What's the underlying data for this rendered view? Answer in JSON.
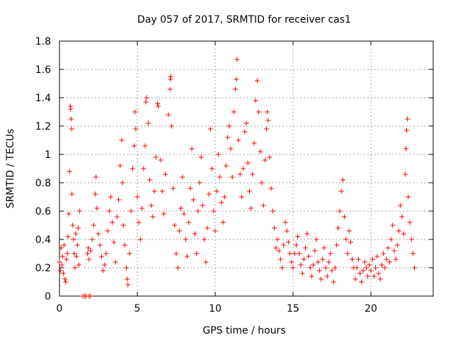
{
  "chart_data": {
    "type": "scatter",
    "title": "Day 057 of 2017, SRMTID for receiver cas1",
    "xlabel": "GPS time / hours",
    "ylabel": "SRMTID / TECUs",
    "xlim": [
      0,
      24
    ],
    "ylim": [
      0,
      1.8
    ],
    "xticks": [
      0,
      5,
      10,
      15,
      20
    ],
    "xtick_labels": [
      "0",
      "5",
      "10",
      "15",
      "20"
    ],
    "yticks": [
      0,
      0.2,
      0.4,
      0.6,
      0.8,
      1.0,
      1.2,
      1.4,
      1.6,
      1.8
    ],
    "ytick_labels": [
      "0",
      "0.2",
      "0.4",
      "0.6",
      "0.8",
      "1",
      "1.2",
      "1.4",
      "1.6",
      "1.8"
    ],
    "grid": true,
    "marker": "+",
    "marker_color": "#ff0000",
    "series": [
      {
        "name": "SRMTID cas1",
        "points": [
          [
            0.0,
            0.24
          ],
          [
            0.05,
            0.18
          ],
          [
            0.1,
            0.34
          ],
          [
            0.15,
            0.22
          ],
          [
            0.2,
            0.28
          ],
          [
            0.25,
            0.16
          ],
          [
            0.3,
            0.36
          ],
          [
            0.35,
            0.12
          ],
          [
            0.4,
            0.1
          ],
          [
            0.45,
            0.26
          ],
          [
            0.5,
            0.3
          ],
          [
            0.55,
            0.42
          ],
          [
            0.6,
            0.58
          ],
          [
            0.65,
            0.88
          ],
          [
            0.7,
            1.34
          ],
          [
            0.72,
            1.32
          ],
          [
            0.75,
            1.25
          ],
          [
            0.78,
            1.18
          ],
          [
            0.8,
            0.72
          ],
          [
            0.85,
            0.5
          ],
          [
            0.9,
            0.4
          ],
          [
            0.95,
            0.3
          ],
          [
            1.0,
            0.2
          ],
          [
            1.05,
            0.44
          ],
          [
            1.1,
            0.28
          ],
          [
            1.15,
            0.36
          ],
          [
            1.2,
            0.48
          ],
          [
            1.25,
            0.22
          ],
          [
            1.3,
            0.6
          ],
          [
            1.5,
            0.0
          ],
          [
            1.6,
            0.0
          ],
          [
            1.7,
            0.0
          ],
          [
            1.9,
            0.0
          ],
          [
            2.0,
            0.0
          ],
          [
            1.8,
            0.3
          ],
          [
            1.85,
            0.34
          ],
          [
            1.9,
            0.26
          ],
          [
            2.0,
            0.32
          ],
          [
            2.1,
            0.4
          ],
          [
            2.2,
            0.5
          ],
          [
            2.3,
            0.72
          ],
          [
            2.35,
            0.84
          ],
          [
            2.4,
            0.62
          ],
          [
            2.5,
            0.44
          ],
          [
            2.6,
            0.36
          ],
          [
            2.7,
            0.28
          ],
          [
            2.8,
            0.18
          ],
          [
            2.9,
            0.22
          ],
          [
            3.0,
            0.3
          ],
          [
            3.1,
            0.46
          ],
          [
            3.2,
            0.6
          ],
          [
            3.3,
            0.7
          ],
          [
            3.4,
            0.52
          ],
          [
            3.5,
            0.38
          ],
          [
            3.6,
            0.24
          ],
          [
            3.7,
            0.56
          ],
          [
            3.8,
            0.68
          ],
          [
            3.9,
            0.92
          ],
          [
            4.0,
            1.1
          ],
          [
            4.05,
            0.8
          ],
          [
            4.1,
            0.5
          ],
          [
            4.2,
            0.36
          ],
          [
            4.3,
            0.2
          ],
          [
            4.35,
            0.12
          ],
          [
            4.4,
            0.08
          ],
          [
            4.5,
            0.3
          ],
          [
            4.6,
            0.6
          ],
          [
            4.7,
            0.9
          ],
          [
            4.8,
            1.06
          ],
          [
            4.85,
            1.3
          ],
          [
            4.9,
            1.18
          ],
          [
            5.0,
            0.7
          ],
          [
            5.1,
            0.52
          ],
          [
            5.2,
            0.4
          ],
          [
            5.3,
            0.62
          ],
          [
            5.4,
            0.9
          ],
          [
            5.5,
            1.06
          ],
          [
            5.55,
            1.37
          ],
          [
            5.6,
            1.4
          ],
          [
            5.7,
            1.22
          ],
          [
            5.8,
            0.82
          ],
          [
            5.9,
            0.64
          ],
          [
            6.0,
            0.56
          ],
          [
            6.1,
            0.74
          ],
          [
            6.2,
            0.98
          ],
          [
            6.3,
            1.36
          ],
          [
            6.35,
            1.34
          ],
          [
            6.5,
            0.96
          ],
          [
            6.6,
            0.74
          ],
          [
            6.7,
            0.58
          ],
          [
            6.8,
            0.86
          ],
          [
            7.0,
            1.28
          ],
          [
            7.1,
            1.46
          ],
          [
            7.12,
            1.53
          ],
          [
            7.15,
            1.55
          ],
          [
            7.2,
            1.2
          ],
          [
            7.3,
            0.76
          ],
          [
            7.4,
            0.5
          ],
          [
            7.5,
            0.3
          ],
          [
            7.6,
            0.2
          ],
          [
            7.7,
            0.46
          ],
          [
            7.8,
            0.62
          ],
          [
            7.9,
            0.84
          ],
          [
            8.0,
            0.58
          ],
          [
            8.1,
            0.4
          ],
          [
            8.2,
            0.28
          ],
          [
            8.3,
            0.52
          ],
          [
            8.4,
            0.76
          ],
          [
            8.5,
            1.04
          ],
          [
            8.6,
            0.68
          ],
          [
            8.7,
            0.44
          ],
          [
            8.8,
            0.3
          ],
          [
            8.9,
            0.6
          ],
          [
            9.0,
            0.8
          ],
          [
            9.1,
            0.98
          ],
          [
            9.2,
            0.64
          ],
          [
            9.3,
            0.4
          ],
          [
            9.4,
            0.24
          ],
          [
            9.5,
            0.48
          ],
          [
            9.6,
            0.72
          ],
          [
            9.7,
            1.18
          ],
          [
            9.8,
            0.9
          ],
          [
            9.9,
            0.6
          ],
          [
            10.0,
            0.46
          ],
          [
            10.1,
            0.74
          ],
          [
            10.2,
            1.0
          ],
          [
            10.3,
            0.84
          ],
          [
            10.4,
            0.66
          ],
          [
            10.5,
            0.52
          ],
          [
            10.6,
            0.7
          ],
          [
            10.7,
            0.92
          ],
          [
            10.8,
            1.12
          ],
          [
            10.9,
            1.2
          ],
          [
            11.0,
            1.04
          ],
          [
            11.1,
            0.84
          ],
          [
            11.2,
            1.3
          ],
          [
            11.3,
            1.46
          ],
          [
            11.35,
            1.53
          ],
          [
            11.4,
            1.67
          ],
          [
            11.5,
            1.1
          ],
          [
            11.6,
            0.86
          ],
          [
            11.7,
            0.7
          ],
          [
            11.8,
            0.9
          ],
          [
            11.9,
            1.16
          ],
          [
            12.0,
            1.22
          ],
          [
            12.1,
            0.94
          ],
          [
            12.2,
            0.74
          ],
          [
            12.3,
            0.62
          ],
          [
            12.4,
            0.86
          ],
          [
            12.5,
            1.08
          ],
          [
            12.6,
            1.38
          ],
          [
            12.7,
            1.52
          ],
          [
            12.8,
            1.3
          ],
          [
            12.9,
            1.02
          ],
          [
            13.0,
            0.8
          ],
          [
            13.1,
            0.64
          ],
          [
            13.2,
            0.96
          ],
          [
            13.3,
            1.18
          ],
          [
            13.35,
            1.3
          ],
          [
            13.4,
            1.24
          ],
          [
            13.5,
            0.98
          ],
          [
            13.6,
            0.76
          ],
          [
            13.7,
            0.6
          ],
          [
            13.8,
            0.48
          ],
          [
            13.9,
            0.34
          ],
          [
            14.0,
            0.4
          ],
          [
            14.1,
            0.32
          ],
          [
            14.2,
            0.26
          ],
          [
            14.3,
            0.2
          ],
          [
            14.4,
            0.36
          ],
          [
            14.5,
            0.52
          ],
          [
            14.6,
            0.46
          ],
          [
            14.7,
            0.38
          ],
          [
            14.8,
            0.3
          ],
          [
            14.9,
            0.24
          ],
          [
            15.0,
            0.2
          ],
          [
            15.1,
            0.3
          ],
          [
            15.2,
            0.36
          ],
          [
            15.3,
            0.42
          ],
          [
            15.4,
            0.3
          ],
          [
            15.5,
            0.22
          ],
          [
            15.6,
            0.16
          ],
          [
            15.7,
            0.26
          ],
          [
            15.8,
            0.34
          ],
          [
            15.9,
            0.44
          ],
          [
            16.0,
            0.28
          ],
          [
            16.1,
            0.2
          ],
          [
            16.2,
            0.14
          ],
          [
            16.3,
            0.22
          ],
          [
            16.4,
            0.32
          ],
          [
            16.5,
            0.4
          ],
          [
            16.6,
            0.24
          ],
          [
            16.7,
            0.18
          ],
          [
            16.8,
            0.12
          ],
          [
            16.9,
            0.26
          ],
          [
            17.0,
            0.34
          ],
          [
            17.1,
            0.2
          ],
          [
            17.2,
            0.14
          ],
          [
            17.3,
            0.24
          ],
          [
            17.4,
            0.3
          ],
          [
            17.5,
            0.18
          ],
          [
            17.6,
            0.1
          ],
          [
            17.7,
            0.2
          ],
          [
            17.8,
            0.36
          ],
          [
            17.9,
            0.48
          ],
          [
            18.0,
            0.6
          ],
          [
            18.1,
            0.74
          ],
          [
            18.2,
            0.82
          ],
          [
            18.3,
            0.56
          ],
          [
            18.4,
            0.4
          ],
          [
            18.5,
            0.3
          ],
          [
            18.6,
            0.46
          ],
          [
            18.7,
            0.38
          ],
          [
            18.8,
            0.26
          ],
          [
            18.9,
            0.2
          ],
          [
            19.0,
            0.12
          ],
          [
            19.1,
            0.2
          ],
          [
            19.2,
            0.26
          ],
          [
            19.3,
            0.16
          ],
          [
            19.4,
            0.1
          ],
          [
            19.5,
            0.18
          ],
          [
            19.6,
            0.24
          ],
          [
            19.7,
            0.2
          ],
          [
            19.8,
            0.14
          ],
          [
            19.9,
            0.22
          ],
          [
            20.0,
            0.18
          ],
          [
            20.1,
            0.26
          ],
          [
            20.2,
            0.14
          ],
          [
            20.3,
            0.2
          ],
          [
            20.4,
            0.28
          ],
          [
            20.5,
            0.16
          ],
          [
            20.6,
            0.12
          ],
          [
            20.7,
            0.22
          ],
          [
            20.8,
            0.3
          ],
          [
            20.9,
            0.2
          ],
          [
            21.0,
            0.26
          ],
          [
            21.1,
            0.34
          ],
          [
            21.2,
            0.24
          ],
          [
            21.3,
            0.4
          ],
          [
            21.4,
            0.5
          ],
          [
            21.5,
            0.32
          ],
          [
            21.6,
            0.26
          ],
          [
            21.7,
            0.36
          ],
          [
            21.8,
            0.46
          ],
          [
            21.9,
            0.64
          ],
          [
            22.0,
            0.56
          ],
          [
            22.1,
            0.44
          ],
          [
            22.2,
            0.86
          ],
          [
            22.25,
            1.04
          ],
          [
            22.3,
            1.17
          ],
          [
            22.35,
            1.25
          ],
          [
            22.4,
            0.7
          ],
          [
            22.5,
            0.52
          ],
          [
            22.6,
            0.4
          ],
          [
            22.7,
            0.3
          ],
          [
            22.8,
            0.2
          ]
        ]
      }
    ]
  }
}
